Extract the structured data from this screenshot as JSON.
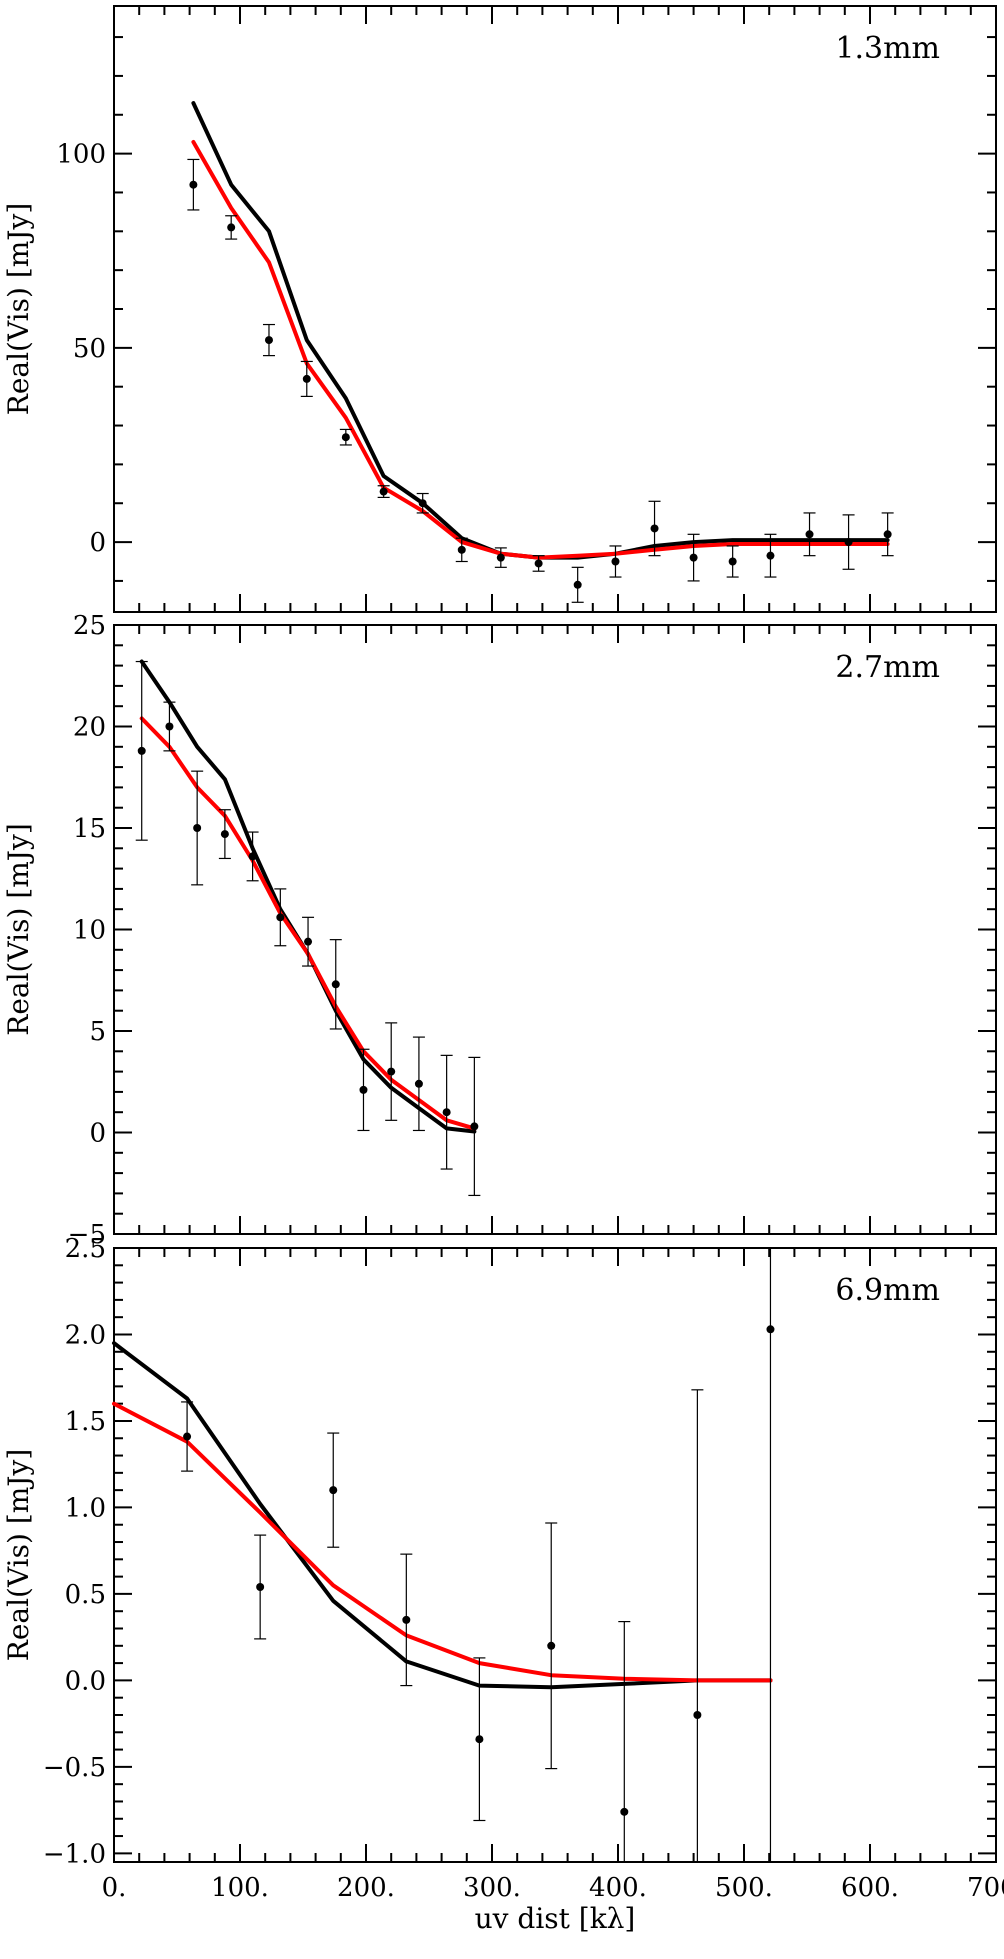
{
  "chart_data": [
    {
      "type": "line",
      "panel_label": "1.3mm",
      "ylabel": "Real(Vis) [mJy]",
      "xlabel": "",
      "xlim": [
        0,
        700
      ],
      "ylim": [
        -18,
        138
      ],
      "y_ticks": [
        0,
        50,
        100
      ],
      "y_tick_labels": [
        "0",
        "50",
        "100"
      ],
      "y_minor_step": 10,
      "x_ticks": [
        0,
        100,
        200,
        300,
        400,
        500,
        600,
        700
      ],
      "x_tick_labels": [],
      "x_minor_step": 20,
      "series": [
        {
          "color": "#000000",
          "x": [
            63,
            93,
            123,
            153,
            184,
            214,
            245,
            276,
            307,
            337,
            368,
            398,
            429,
            460,
            491,
            521,
            552,
            583,
            614
          ],
          "y": [
            113,
            92,
            80,
            52,
            37,
            17,
            10,
            1,
            -3,
            -4,
            -4,
            -3,
            -1,
            0,
            0.5,
            0.5,
            0.5,
            0.5,
            0.5
          ]
        },
        {
          "color": "#ff0000",
          "x": [
            63,
            93,
            123,
            153,
            184,
            214,
            245,
            276,
            307,
            337,
            368,
            398,
            429,
            460,
            491,
            521,
            552,
            583,
            614
          ],
          "y": [
            103,
            86,
            72,
            46,
            32,
            14,
            8,
            0,
            -3,
            -4,
            -3.5,
            -3,
            -2,
            -1,
            -0.5,
            -0.5,
            -0.5,
            -0.5,
            -0.5
          ]
        },
        {
          "type": "scatter",
          "color": "#000000",
          "x": [
            63,
            93,
            123,
            153,
            184,
            214,
            245,
            276,
            307,
            337,
            368,
            398,
            429,
            460,
            491,
            521,
            552,
            583,
            614
          ],
          "y": [
            92,
            81,
            52,
            42,
            27,
            13,
            10,
            -2,
            -4,
            -5.5,
            -11,
            -5,
            3.5,
            -4,
            -5,
            -3.5,
            2,
            0,
            2
          ],
          "err": [
            6.5,
            3,
            4,
            4.5,
            2,
            1.5,
            2.5,
            3,
            2.5,
            2,
            4.5,
            4,
            7,
            6,
            4,
            5.5,
            5.5,
            7,
            5.5
          ]
        }
      ]
    },
    {
      "type": "line",
      "panel_label": "2.7mm",
      "ylabel": "Real(Vis) [mJy]",
      "xlabel": "",
      "xlim": [
        0,
        700
      ],
      "ylim": [
        -5,
        25
      ],
      "y_ticks": [
        -5,
        0,
        5,
        10,
        15,
        20,
        25
      ],
      "y_tick_labels": [
        "−5",
        "0",
        "5",
        "10",
        "15",
        "20",
        "25"
      ],
      "y_minor_step": 1,
      "x_ticks": [
        0,
        100,
        200,
        300,
        400,
        500,
        600,
        700
      ],
      "x_tick_labels": [],
      "x_minor_step": 20,
      "series": [
        {
          "color": "#000000",
          "x": [
            22,
            44,
            66,
            88,
            110,
            132,
            154,
            176,
            198,
            220,
            242,
            264,
            286
          ],
          "y": [
            23.2,
            21.2,
            19,
            17.4,
            14,
            11,
            8.8,
            6,
            3.6,
            2.2,
            1.2,
            0.2,
            0.05
          ]
        },
        {
          "color": "#ff0000",
          "x": [
            22,
            44,
            66,
            88,
            110,
            132,
            154,
            176,
            198,
            220,
            242,
            264,
            286
          ],
          "y": [
            20.4,
            19,
            17,
            15.6,
            13.4,
            10.8,
            8.8,
            6.2,
            4,
            2.6,
            1.6,
            0.6,
            0.2
          ]
        },
        {
          "type": "scatter",
          "color": "#000000",
          "x": [
            22,
            44,
            66,
            88,
            110,
            132,
            154,
            176,
            198,
            220,
            242,
            264,
            286
          ],
          "y": [
            18.8,
            20,
            15,
            14.7,
            13.6,
            10.6,
            9.4,
            7.3,
            2.1,
            3,
            2.4,
            1,
            0.3
          ],
          "err": [
            4.4,
            1.2,
            2.8,
            1.2,
            1.2,
            1.4,
            1.2,
            2.2,
            2,
            2.4,
            2.3,
            2.8,
            3.4
          ]
        }
      ]
    },
    {
      "type": "line",
      "panel_label": "6.9mm",
      "ylabel": "Real(Vis) [mJy]",
      "xlabel": "uv dist [kλ]",
      "xlim": [
        0,
        700
      ],
      "ylim": [
        -1.05,
        2.5
      ],
      "y_ticks": [
        -1.0,
        -0.5,
        0.0,
        0.5,
        1.0,
        1.5,
        2.0,
        2.5
      ],
      "y_tick_labels": [
        "−1.0",
        "−0.5",
        "0.0",
        "0.5",
        "1.0",
        "1.5",
        "2.0",
        "2.5"
      ],
      "y_minor_step": 0.1,
      "x_ticks": [
        0,
        100,
        200,
        300,
        400,
        500,
        600,
        700
      ],
      "x_tick_labels": [
        "0.",
        "100.",
        "200.",
        "300.",
        "400.",
        "500.",
        "600.",
        "700."
      ],
      "x_minor_step": 20,
      "series": [
        {
          "color": "#000000",
          "x": [
            0,
            58,
            116,
            174,
            232,
            290,
            347,
            405,
            463,
            521
          ],
          "y": [
            1.95,
            1.63,
            1.02,
            0.46,
            0.11,
            -0.03,
            -0.04,
            -0.02,
            0,
            0
          ]
        },
        {
          "color": "#ff0000",
          "x": [
            0,
            58,
            116,
            174,
            232,
            290,
            347,
            405,
            463,
            521
          ],
          "y": [
            1.6,
            1.38,
            0.97,
            0.55,
            0.26,
            0.1,
            0.03,
            0.01,
            0,
            0
          ]
        },
        {
          "type": "scatter",
          "color": "#000000",
          "x": [
            58,
            116,
            174,
            232,
            290,
            347,
            405,
            463,
            521
          ],
          "y": [
            1.41,
            0.54,
            1.1,
            0.35,
            -0.34,
            0.2,
            -0.76,
            -0.2,
            2.03
          ],
          "err": [
            0.2,
            0.3,
            0.33,
            0.38,
            0.47,
            0.71,
            1.1,
            1.88,
            3.3
          ]
        }
      ]
    }
  ]
}
